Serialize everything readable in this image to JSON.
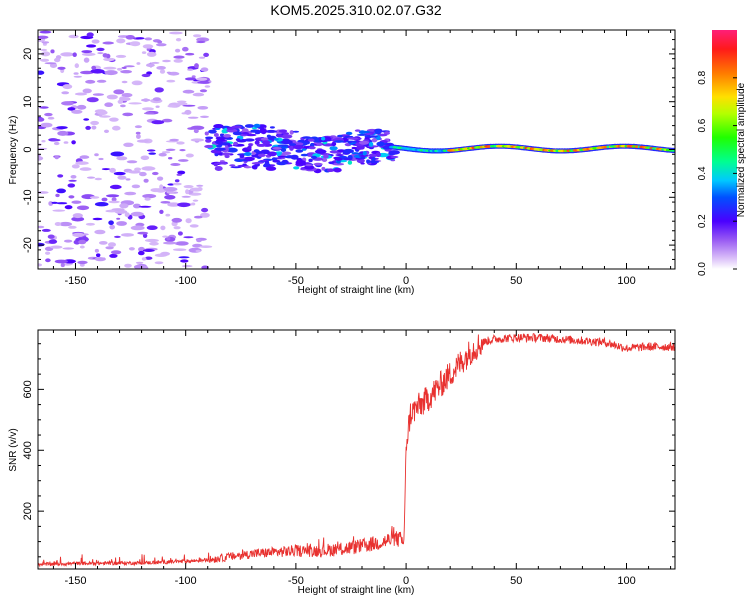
{
  "title": "KOM5.2025.310.02.07.G32",
  "chart_data": [
    {
      "type": "heatmap",
      "xlabel": "Height of straight line (km)",
      "ylabel": "Frequency (Hz)",
      "xlim": [
        -167,
        122
      ],
      "ylim": [
        -25,
        25
      ],
      "xticks": [
        -150,
        -100,
        -50,
        0,
        50,
        100
      ],
      "yticks": [
        -20,
        -10,
        0,
        10,
        20
      ],
      "colorbar": {
        "label": "Normalized spectral amplitude",
        "range": [
          0,
          1
        ],
        "ticks": [
          0.0,
          0.2,
          0.4,
          0.6,
          0.8
        ],
        "tick_labels": [
          "0.0",
          "0.2",
          "0.4",
          "0.6",
          "0.8"
        ]
      },
      "features": [
        {
          "name": "noise",
          "x_range": [
            -167,
            -90
          ],
          "freq_range": [
            -25,
            25
          ],
          "amplitude": 0.1
        },
        {
          "name": "turbulent_trail",
          "x_range": [
            -90,
            -5
          ],
          "freq_center": 0,
          "freq_spread": 4,
          "amplitude": 0.2
        },
        {
          "name": "head_echo_trace",
          "x_range": [
            -5,
            122
          ],
          "freq_center": 0,
          "freq_spread": 1,
          "amplitude_range": [
            0.25,
            0.9
          ]
        }
      ]
    },
    {
      "type": "line",
      "xlabel": "Height of straight line (km)",
      "ylabel": "SNR (v/v)",
      "xlim": [
        -167,
        122
      ],
      "ylim": [
        10,
        795
      ],
      "xticks": [
        -150,
        -100,
        -50,
        0,
        50,
        100
      ],
      "yticks": [
        200,
        400,
        600
      ],
      "series": [
        {
          "name": "SNR",
          "color": "#e8312f",
          "x": [
            -167,
            -150,
            -120,
            -100,
            -90,
            -80,
            -70,
            -60,
            -50,
            -40,
            -30,
            -20,
            -10,
            -5,
            -2,
            -1,
            -0.5,
            0,
            2,
            5,
            10,
            15,
            20,
            25,
            30,
            35,
            40,
            50,
            60,
            70,
            80,
            90,
            100,
            110,
            122
          ],
          "y": [
            25,
            28,
            30,
            35,
            40,
            50,
            60,
            65,
            70,
            70,
            75,
            85,
            100,
            110,
            105,
            90,
            200,
            420,
            520,
            540,
            570,
            610,
            650,
            690,
            730,
            755,
            765,
            770,
            770,
            765,
            760,
            755,
            735,
            740,
            740
          ]
        }
      ]
    }
  ]
}
